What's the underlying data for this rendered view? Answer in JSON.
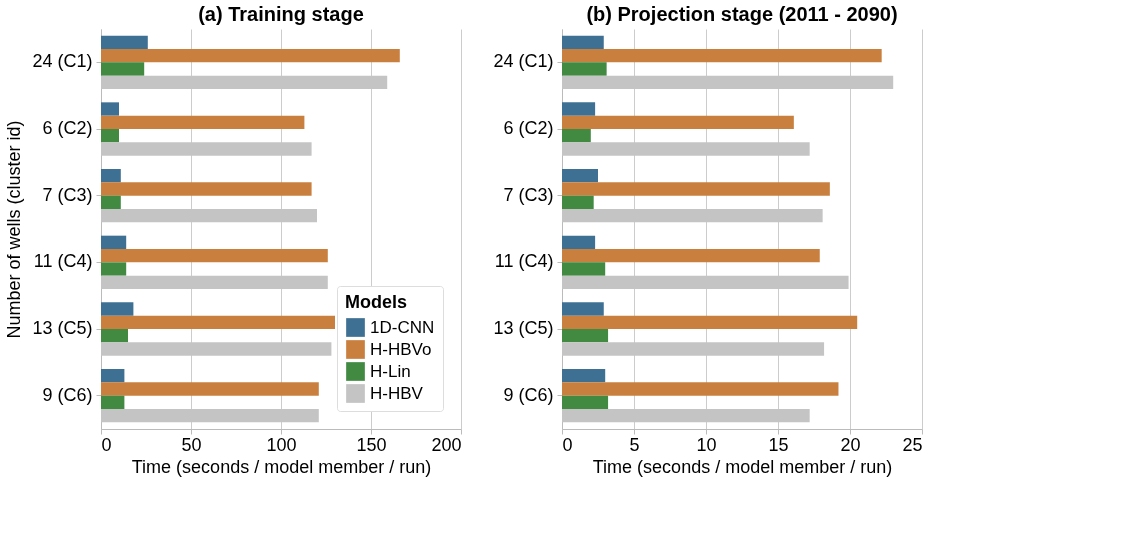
{
  "chart_data": [
    {
      "type": "bar",
      "orientation": "horizontal",
      "title": "(a) Training stage",
      "xlabel": "Time (seconds / model member / run)",
      "ylabel": "Number of wells (cluster id)",
      "categories": [
        "24 (C1)",
        "6 (C2)",
        "7 (C3)",
        "11 (C4)",
        "13 (C5)",
        "9 (C6)"
      ],
      "series": [
        {
          "name": "1D-CNN",
          "color": "#3e7093",
          "values": [
            26,
            10,
            11,
            14,
            18,
            13
          ]
        },
        {
          "name": "H-HBVo",
          "color": "#c9803f",
          "values": [
            166,
            113,
            117,
            126,
            130,
            121
          ]
        },
        {
          "name": "H-Lin",
          "color": "#428a42",
          "values": [
            24,
            10,
            11,
            14,
            15,
            13
          ]
        },
        {
          "name": "H-HBV",
          "color": "#c4c4c4",
          "values": [
            159,
            117,
            120,
            126,
            128,
            121
          ]
        }
      ],
      "legend_title": "Models",
      "legend": "bottom right",
      "xlim": [
        0,
        200
      ],
      "xticks": [
        0,
        50,
        100,
        150,
        200
      ],
      "grid": "x"
    },
    {
      "type": "bar",
      "orientation": "horizontal",
      "title": "(b) Projection stage (2011 - 2090)",
      "xlabel": "Time (seconds / model member / run)",
      "categories": [
        "24 (C1)",
        "6 (C2)",
        "7 (C3)",
        "11 (C4)",
        "13 (C5)",
        "9 (C6)"
      ],
      "series": [
        {
          "color": "#3e7093",
          "values": [
            2.9,
            2.3,
            2.5,
            2.3,
            2.9,
            3.0
          ]
        },
        {
          "color": "#c9803f",
          "values": [
            22.2,
            16.1,
            18.6,
            17.9,
            20.5,
            19.2
          ]
        },
        {
          "color": "#428a42",
          "values": [
            3.1,
            2.0,
            2.2,
            3.0,
            3.2,
            3.2
          ]
        },
        {
          "color": "#c4c4c4",
          "values": [
            23.0,
            17.2,
            18.1,
            19.9,
            18.2,
            17.2
          ]
        }
      ],
      "xlim": [
        0,
        25
      ],
      "xticks": [
        0,
        5,
        10,
        15,
        20,
        25
      ],
      "grid": "x"
    }
  ]
}
